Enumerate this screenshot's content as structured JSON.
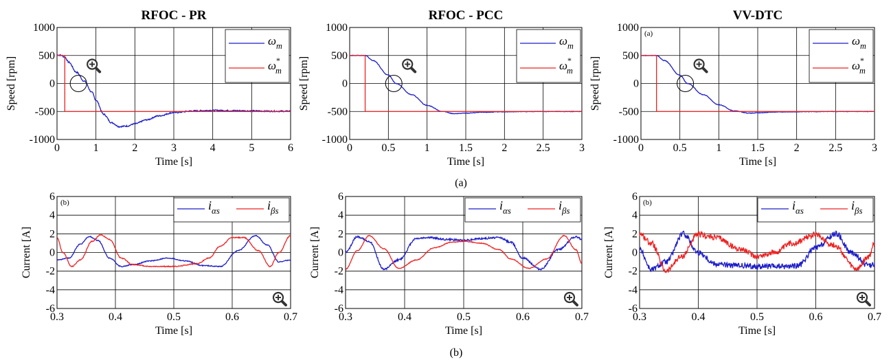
{
  "figure": {
    "caption_a": "(a)",
    "caption_b": "(b)"
  },
  "colors": {
    "blue": "#1c1cc8",
    "red": "#ee2020",
    "grid": "#000000"
  },
  "chart_data": [
    {
      "type": "line",
      "title": "RFOC - PR",
      "panel_tag": "",
      "xlabel": "Time [s]",
      "ylabel": "Speed [rpm]",
      "xlim": [
        0,
        6
      ],
      "ylim": [
        -1000,
        1000
      ],
      "xticks": [
        0,
        1,
        2,
        3,
        4,
        5,
        6
      ],
      "xticklabels": [
        "0",
        "1",
        "2",
        "3",
        "4",
        "5",
        "6"
      ],
      "yticks": [
        -1000,
        -500,
        0,
        500,
        1000
      ],
      "yticklabels": [
        "-1000",
        "-500",
        "0",
        "500",
        "1000"
      ],
      "grid": true,
      "legend": "top-right",
      "zoom_icon": true,
      "series": [
        {
          "name": "ω_m",
          "color": "blue",
          "noise": 12,
          "x": [
            0,
            0.1,
            0.2,
            0.3,
            0.5,
            0.7,
            0.9,
            1.0,
            1.2,
            1.4,
            1.6,
            1.8,
            2.0,
            2.3,
            2.6,
            3.0,
            3.5,
            4.0,
            4.5,
            5.0,
            5.5,
            6.0
          ],
          "y": [
            510,
            505,
            470,
            380,
            200,
            40,
            -160,
            -300,
            -550,
            -700,
            -770,
            -760,
            -720,
            -650,
            -580,
            -520,
            -490,
            -480,
            -485,
            -490,
            -495,
            -495
          ]
        },
        {
          "name": "ω*_m",
          "color": "red",
          "noise": 0,
          "x": [
            0,
            0.2,
            0.2,
            6.0
          ],
          "y": [
            500,
            500,
            -500,
            -500
          ]
        }
      ],
      "annotations": [
        {
          "type": "circle",
          "x": 0.55,
          "y": 0
        }
      ]
    },
    {
      "type": "line",
      "title": "RFOC - PCC",
      "panel_tag": "",
      "xlabel": "Time [s]",
      "ylabel": "Speed [rpm]",
      "xlim": [
        0,
        3
      ],
      "ylim": [
        -1000,
        1000
      ],
      "xticks": [
        0,
        0.5,
        1,
        1.5,
        2,
        2.5,
        3
      ],
      "xticklabels": [
        "0",
        "0.5",
        "1",
        "1.5",
        "2",
        "2.5",
        "3"
      ],
      "yticks": [
        -1000,
        -500,
        0,
        500,
        1000
      ],
      "yticklabels": [
        "-1000",
        "-500",
        "0",
        "500",
        "1000"
      ],
      "grid": true,
      "legend": "top-right",
      "zoom_icon": true,
      "series": [
        {
          "name": "ω_m",
          "color": "blue",
          "noise": 5,
          "x": [
            0,
            0.2,
            0.3,
            0.5,
            0.6,
            0.8,
            1.0,
            1.2,
            1.35,
            1.5,
            1.7,
            2.0,
            2.5,
            3.0
          ],
          "y": [
            500,
            500,
            410,
            150,
            0,
            -200,
            -390,
            -500,
            -540,
            -530,
            -515,
            -505,
            -500,
            -500
          ]
        },
        {
          "name": "ω*_m",
          "color": "red",
          "noise": 0,
          "x": [
            0,
            0.2,
            0.2,
            3.0
          ],
          "y": [
            500,
            500,
            -500,
            -500
          ]
        }
      ],
      "annotations": [
        {
          "type": "circle",
          "x": 0.57,
          "y": 0
        }
      ]
    },
    {
      "type": "line",
      "title": "VV-DTC",
      "panel_tag": "(a)",
      "xlabel": "Time [s]",
      "ylabel": "Speed [rpm]",
      "xlim": [
        0,
        3
      ],
      "ylim": [
        -1000,
        1000
      ],
      "xticks": [
        0,
        0.5,
        1,
        1.5,
        2,
        2.5,
        3
      ],
      "xticklabels": [
        "0",
        "0.5",
        "1",
        "1.5",
        "2",
        "2.5",
        "3"
      ],
      "yticks": [
        -1000,
        -500,
        0,
        500,
        1000
      ],
      "yticklabels": [
        "-1000",
        "-500",
        "0",
        "500",
        "1000"
      ],
      "grid": true,
      "legend": "top-right",
      "zoom_icon": true,
      "series": [
        {
          "name": "ω_m",
          "color": "blue",
          "noise": 5,
          "x": [
            0,
            0.2,
            0.3,
            0.5,
            0.6,
            0.8,
            1.0,
            1.2,
            1.4,
            1.5,
            1.7,
            2.0,
            2.5,
            3.0
          ],
          "y": [
            500,
            500,
            410,
            150,
            0,
            -200,
            -380,
            -490,
            -530,
            -525,
            -510,
            -505,
            -500,
            -500
          ]
        },
        {
          "name": "ω*_m",
          "color": "red",
          "noise": 0,
          "x": [
            0,
            0.2,
            0.2,
            3.0
          ],
          "y": [
            500,
            500,
            -500,
            -500
          ]
        }
      ],
      "annotations": [
        {
          "type": "circle",
          "x": 0.57,
          "y": 0
        }
      ]
    },
    {
      "type": "line",
      "title": "",
      "panel_tag": "(b)",
      "xlabel": "Time [s]",
      "ylabel": "Current [A]",
      "xlim": [
        0.3,
        0.7
      ],
      "ylim": [
        -6,
        6
      ],
      "xticks": [
        0.3,
        0.4,
        0.5,
        0.6,
        0.7
      ],
      "xticklabels": [
        "0.3",
        "0.4",
        "0.5",
        "0.6",
        "0.7"
      ],
      "yticks": [
        -6,
        -4,
        -2,
        0,
        2,
        4,
        6
      ],
      "yticklabels": [
        "-6",
        "-4",
        "-2",
        "0",
        "2",
        "4",
        "6"
      ],
      "grid": true,
      "legend": "top-right",
      "zoom_icon": true,
      "series": [
        {
          "name": "i_αs",
          "color": "blue",
          "noise": 0.05,
          "x": [
            0.3,
            0.32,
            0.34,
            0.355,
            0.37,
            0.39,
            0.41,
            0.43,
            0.46,
            0.49,
            0.52,
            0.55,
            0.58,
            0.61,
            0.64,
            0.66,
            0.68,
            0.7
          ],
          "y": [
            -0.8,
            -0.6,
            0.9,
            1.7,
            1.3,
            -0.6,
            -1.5,
            -1.3,
            -0.9,
            -0.6,
            -0.9,
            -1.4,
            -1.5,
            0.2,
            1.8,
            0.8,
            -1.0,
            -0.8
          ]
        },
        {
          "name": "i_βs",
          "color": "red",
          "noise": 0.05,
          "x": [
            0.3,
            0.31,
            0.325,
            0.34,
            0.36,
            0.375,
            0.39,
            0.41,
            0.43,
            0.46,
            0.5,
            0.54,
            0.56,
            0.58,
            0.6,
            0.62,
            0.645,
            0.665,
            0.68,
            0.7
          ],
          "y": [
            1.6,
            0.0,
            -1.5,
            -0.8,
            1.2,
            1.9,
            1.4,
            -0.6,
            -1.3,
            -1.5,
            -1.5,
            -1.2,
            -0.6,
            0.7,
            1.6,
            1.6,
            0.2,
            -1.5,
            0.0,
            1.8
          ]
        }
      ],
      "annotations": []
    },
    {
      "type": "line",
      "title": "",
      "panel_tag": "",
      "xlabel": "Time [s]",
      "ylabel": "Current [A]",
      "xlim": [
        0.3,
        0.7
      ],
      "ylim": [
        -6,
        6
      ],
      "xticks": [
        0.3,
        0.4,
        0.5,
        0.6,
        0.7
      ],
      "xticklabels": [
        "0.3",
        "0.4",
        "0.5",
        "0.6",
        "0.7"
      ],
      "yticks": [
        -6,
        -4,
        -2,
        0,
        2,
        4,
        6
      ],
      "yticklabels": [
        "-6",
        "-4",
        "-2",
        "0",
        "2",
        "4",
        "6"
      ],
      "grid": true,
      "legend": "top-right",
      "zoom_icon": true,
      "series": [
        {
          "name": "i_αs",
          "color": "blue",
          "noise": 0.1,
          "x": [
            0.3,
            0.32,
            0.34,
            0.365,
            0.39,
            0.42,
            0.44,
            0.47,
            0.5,
            0.53,
            0.56,
            0.58,
            0.6,
            0.63,
            0.66,
            0.69,
            0.7
          ],
          "y": [
            0.0,
            1.7,
            1.2,
            -1.8,
            -0.8,
            1.5,
            1.6,
            1.4,
            1.3,
            1.5,
            1.6,
            1.1,
            -0.6,
            -1.8,
            0.3,
            1.7,
            1.4
          ]
        },
        {
          "name": "i_βs",
          "color": "red",
          "noise": 0.04,
          "x": [
            0.3,
            0.32,
            0.34,
            0.365,
            0.39,
            0.42,
            0.45,
            0.48,
            0.5,
            0.53,
            0.56,
            0.58,
            0.61,
            0.64,
            0.67,
            0.69,
            0.7
          ],
          "y": [
            -1.8,
            0.2,
            1.8,
            0.4,
            -1.7,
            -0.8,
            0.5,
            1.1,
            1.2,
            1.0,
            0.3,
            -0.7,
            -1.7,
            -0.7,
            1.8,
            0.3,
            -1.2
          ]
        }
      ],
      "annotations": []
    },
    {
      "type": "line",
      "title": "",
      "panel_tag": "(b)",
      "xlabel": "Time [s]",
      "ylabel": "Current [A]",
      "xlim": [
        0.3,
        0.7
      ],
      "ylim": [
        -6,
        6
      ],
      "xticks": [
        0.3,
        0.4,
        0.5,
        0.6,
        0.7
      ],
      "xticklabels": [
        "0.3",
        "0.4",
        "0.5",
        "0.6",
        "0.7"
      ],
      "yticks": [
        -6,
        -4,
        -2,
        0,
        2,
        4,
        6
      ],
      "yticklabels": [
        "-6",
        "-4",
        "-2",
        "0",
        "2",
        "4",
        "6"
      ],
      "grid": true,
      "legend": "top-right",
      "zoom_icon": true,
      "series": [
        {
          "name": "i_αs",
          "color": "blue",
          "noise": 0.3,
          "x": [
            0.3,
            0.32,
            0.345,
            0.375,
            0.4,
            0.43,
            0.46,
            0.5,
            0.54,
            0.57,
            0.6,
            0.635,
            0.66,
            0.69,
            0.7
          ],
          "y": [
            0.3,
            -1.8,
            -1.0,
            2.0,
            0.0,
            -1.2,
            -1.4,
            -1.5,
            -1.5,
            -1.4,
            0.5,
            2.0,
            0.0,
            -1.4,
            -1.3
          ]
        },
        {
          "name": "i_βs",
          "color": "red",
          "noise": 0.3,
          "x": [
            0.3,
            0.32,
            0.345,
            0.37,
            0.4,
            0.43,
            0.47,
            0.5,
            0.53,
            0.56,
            0.6,
            0.63,
            0.67,
            0.69,
            0.7
          ],
          "y": [
            2.0,
            1.0,
            -2.0,
            -0.5,
            1.9,
            1.6,
            0.4,
            -0.4,
            0.0,
            1.0,
            1.9,
            0.8,
            -1.8,
            -0.5,
            1.0
          ]
        }
      ],
      "annotations": []
    }
  ]
}
